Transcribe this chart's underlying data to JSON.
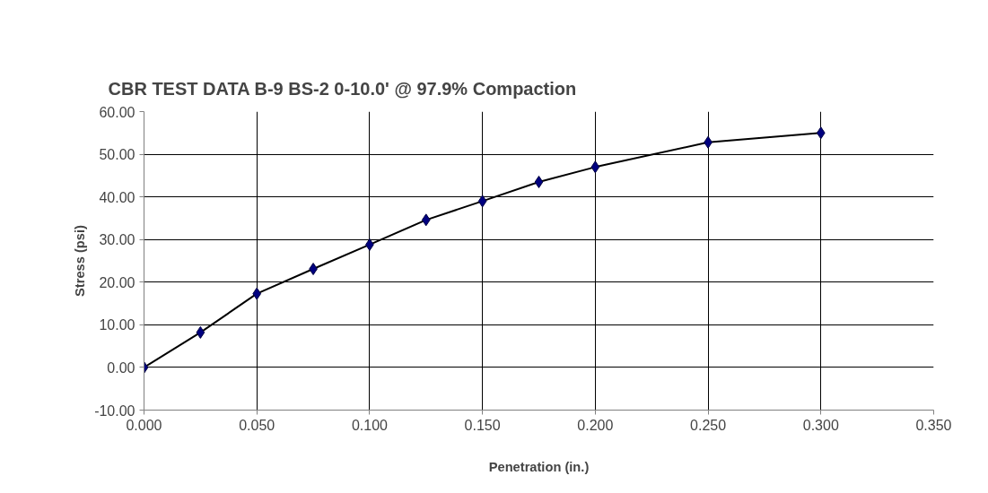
{
  "chart_data": {
    "type": "line",
    "title": "CBR TEST DATA B-9 BS-2 0-10.0' @ 97.9% Compaction",
    "xlabel": "Penetration (in.)",
    "ylabel": "Stress (psi)",
    "x": [
      0,
      0.025,
      0.05,
      0.075,
      0.1,
      0.125,
      0.15,
      0.175,
      0.2,
      0.25,
      0.3
    ],
    "series": [
      {
        "color": "#000080",
        "values": [
          0,
          8.2,
          17.3,
          23.1,
          28.8,
          34.6,
          39.0,
          43.5,
          47.0,
          52.8,
          55.0
        ]
      }
    ],
    "xlim": [
      0,
      0.35
    ],
    "ylim": [
      -10,
      60
    ],
    "xticks": [
      {
        "value": 0,
        "label": "0.000"
      },
      {
        "value": 0.05,
        "label": "0.050"
      },
      {
        "value": 0.1,
        "label": "0.100"
      },
      {
        "value": 0.15,
        "label": "0.150"
      },
      {
        "value": 0.2,
        "label": "0.200"
      },
      {
        "value": 0.25,
        "label": "0.250"
      },
      {
        "value": 0.3,
        "label": "0.300"
      },
      {
        "value": 0.35,
        "label": "0.350"
      }
    ],
    "yticks": [
      {
        "value": -10,
        "label": "-10.00"
      },
      {
        "value": 0,
        "label": "0.00"
      },
      {
        "value": 10,
        "label": "10.00"
      },
      {
        "value": 20,
        "label": "20.00"
      },
      {
        "value": 30,
        "label": "30.00"
      },
      {
        "value": 40,
        "label": "40.00"
      },
      {
        "value": 50,
        "label": "50.00"
      },
      {
        "value": 60,
        "label": "60.00"
      }
    ],
    "grid": true,
    "marker": "diamond",
    "line_style": "solid"
  }
}
